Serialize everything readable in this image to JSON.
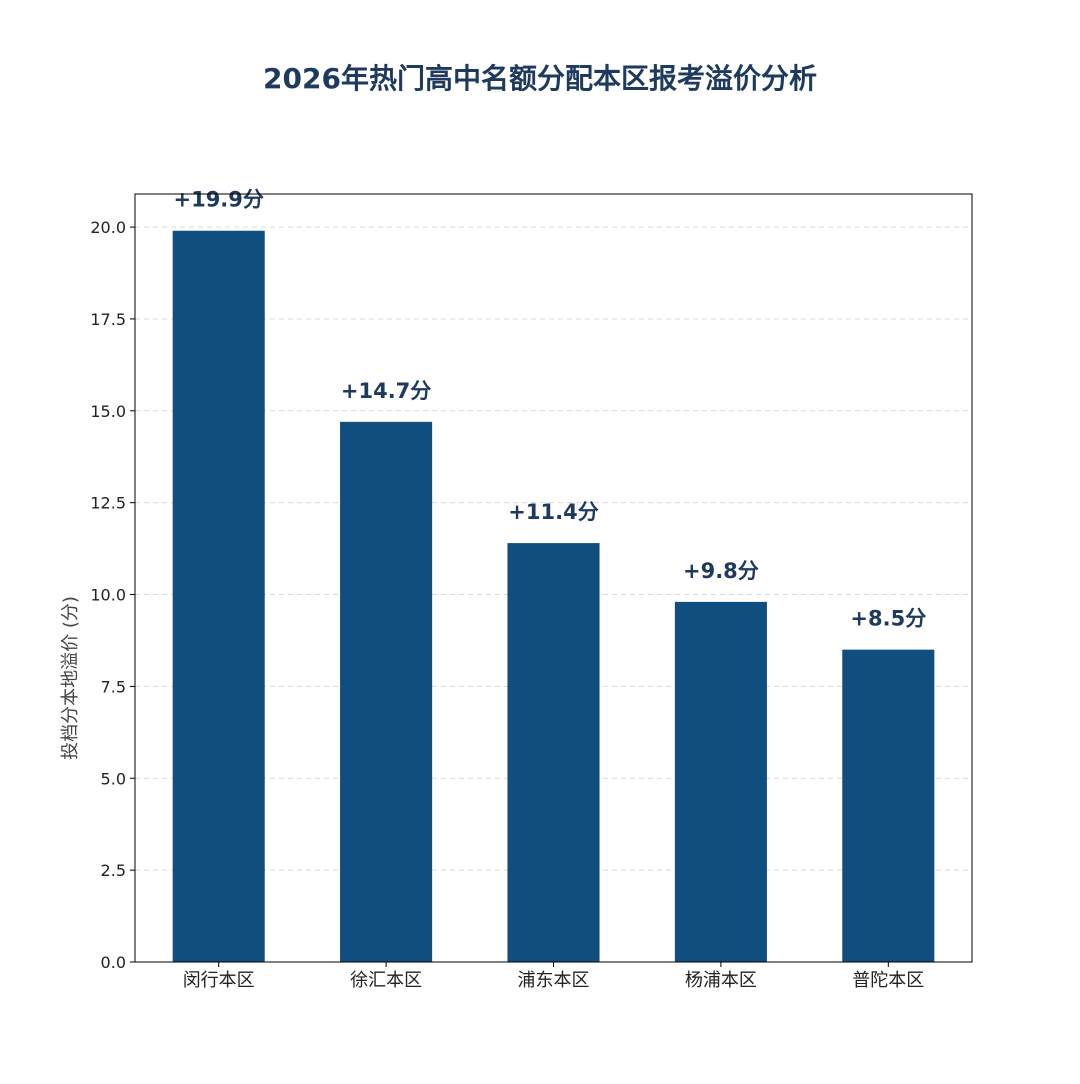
{
  "chart_data": {
    "type": "bar",
    "title": "2026年热门高中名额分配本区报考溢价分析",
    "xlabel": "",
    "ylabel": "投档分本地溢价 (分)",
    "categories": [
      "闵行本区",
      "徐汇本区",
      "浦东本区",
      "杨浦本区",
      "普陀本区"
    ],
    "values": [
      19.9,
      14.7,
      11.4,
      9.8,
      8.5
    ],
    "data_labels": [
      "+19.9分",
      "+14.7分",
      "+11.4分",
      "+9.8分",
      "+8.5分"
    ],
    "ylim": [
      0,
      20.9
    ],
    "yticks": [
      0.0,
      2.5,
      5.0,
      7.5,
      10.0,
      12.5,
      15.0,
      17.5,
      20.0
    ],
    "ytick_labels": [
      "0.0",
      "2.5",
      "5.0",
      "7.5",
      "10.0",
      "12.5",
      "15.0",
      "17.5",
      "20.0"
    ],
    "grid": "horizontal dashed",
    "legend": "none",
    "colors": {
      "bar": "#104E80",
      "title": "#1F3A5F",
      "data_label": "#1F3A5F",
      "axis": "#000000",
      "grid": "#d9d9d9",
      "ylabel": "#444444"
    }
  }
}
